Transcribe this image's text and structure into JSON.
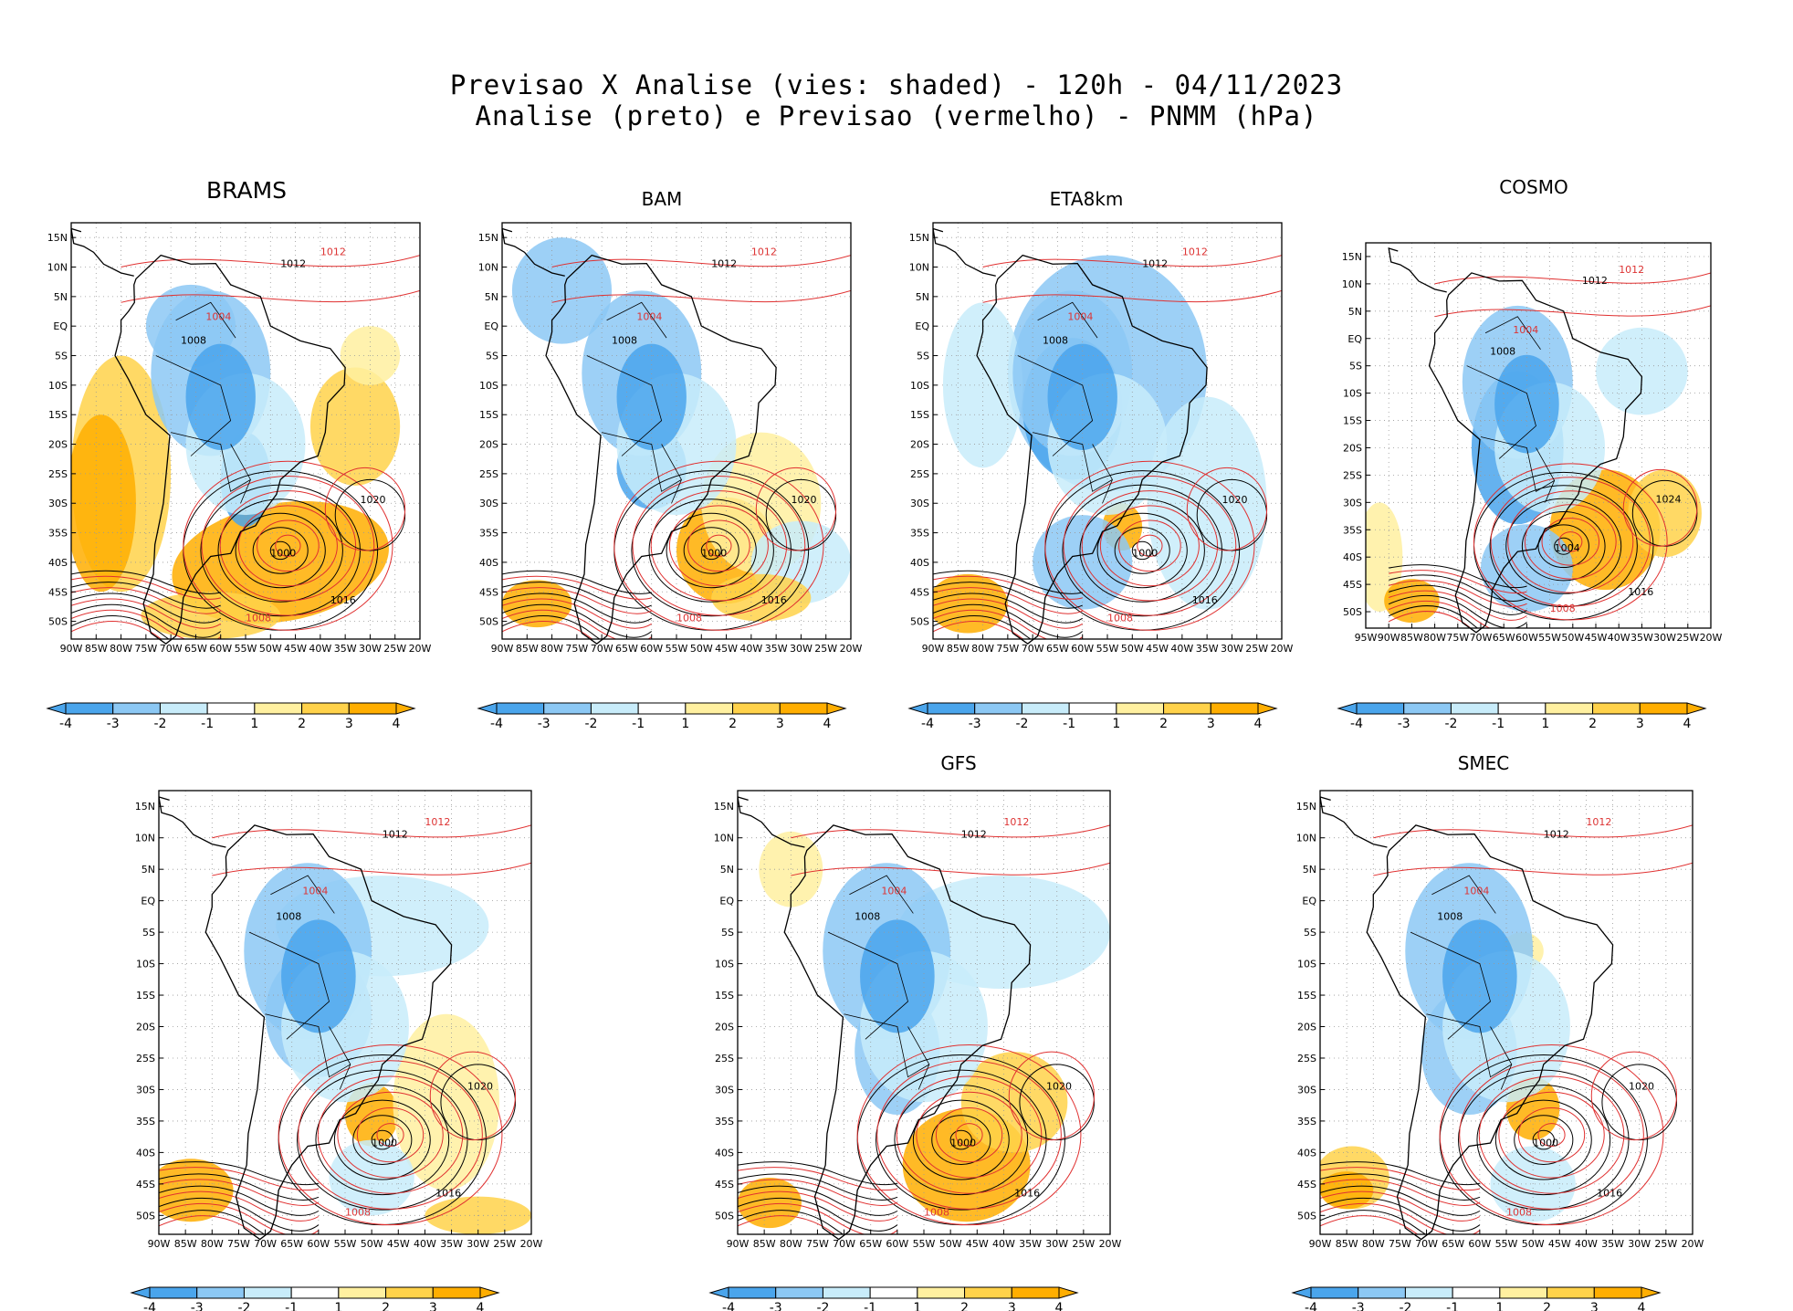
{
  "header": {
    "line1": "Previsao X Analise (vies: shaded) - 120h - 04/11/2023",
    "line2": "Analise (preto) e Previsao (vermelho) - PNMM (hPa)"
  },
  "colors": {
    "blue_dark": "#4aa5ec",
    "blue_mid": "#8cc8f4",
    "blue_light": "#c8ecfa",
    "yellow_light": "#fff0a0",
    "yellow": "#ffd24a",
    "orange": "#ffae00",
    "analysis_line": "#000000",
    "forecast_line": "#e03030"
  },
  "colorbar": {
    "labels": [
      "-4",
      "-3",
      "-2",
      "-1",
      "1",
      "2",
      "3",
      "4"
    ],
    "fills": [
      "#4aa5ec",
      "#8cc8f4",
      "#c8ecfa",
      "#ffffff",
      "#fff0a0",
      "#ffd24a",
      "#ffae00"
    ]
  },
  "lat_ticks": [
    "15N",
    "10N",
    "5N",
    "EQ",
    "5S",
    "10S",
    "15S",
    "20S",
    "25S",
    "30S",
    "35S",
    "40S",
    "45S",
    "50S"
  ],
  "lon_ticks_a": [
    "90W",
    "85W",
    "80W",
    "75W",
    "70W",
    "65W",
    "60W",
    "55W",
    "50W",
    "45W",
    "40W",
    "35W",
    "30W",
    "25W",
    "20W"
  ],
  "lon_ticks_cosmo": [
    "95W",
    "90W",
    "85W",
    "80W",
    "75W",
    "70W",
    "65W",
    "60W",
    "55W",
    "50W",
    "45W",
    "40W",
    "35W",
    "30W",
    "25W",
    "20W"
  ],
  "isobars": [
    "1000",
    "1004",
    "1008",
    "1012",
    "1016",
    "1020",
    "1024"
  ],
  "panels": [
    {
      "name": "BRAMS",
      "low": "1000",
      "high": "1020"
    },
    {
      "name": "BAM",
      "low": "1000",
      "high": "1020"
    },
    {
      "name": "ETA8km",
      "low": "1000",
      "high": "1020"
    },
    {
      "name": "COSMO",
      "low": "1004",
      "high": "1024"
    },
    {
      "name": "",
      "low": "1000",
      "high": "1020"
    },
    {
      "name": "GFS",
      "low": "1000",
      "high": "1020"
    },
    {
      "name": "SMEC",
      "low": "1000",
      "high": "1020"
    }
  ]
}
